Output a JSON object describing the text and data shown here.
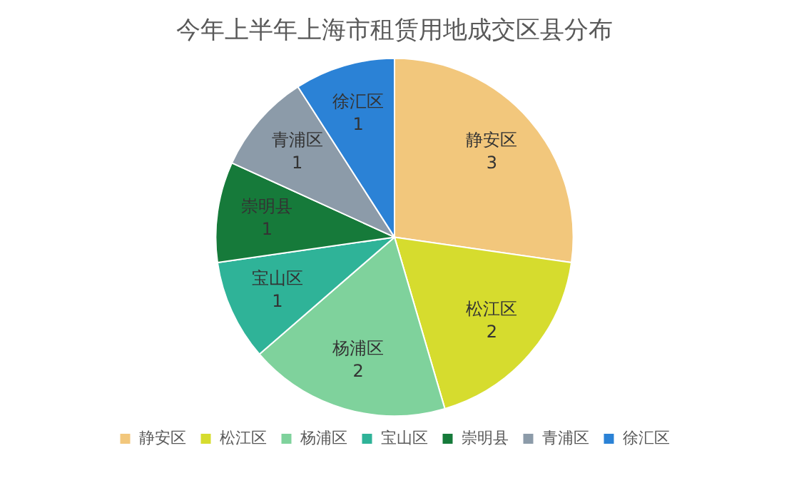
{
  "chart_data": {
    "type": "pie",
    "title": "今年上半年上海市租赁用地成交区县分布",
    "categories": [
      "静安区",
      "松江区",
      "杨浦区",
      "宝山区",
      "崇明县",
      "青浦区",
      "徐汇区"
    ],
    "values": [
      3,
      2,
      2,
      1,
      1,
      1,
      1
    ],
    "colors": [
      "#f2c77c",
      "#d6dc2e",
      "#7fd29c",
      "#2fb398",
      "#167a3a",
      "#8c9ba9",
      "#2b82d6"
    ],
    "data_labels": true,
    "legend": "bottom"
  }
}
